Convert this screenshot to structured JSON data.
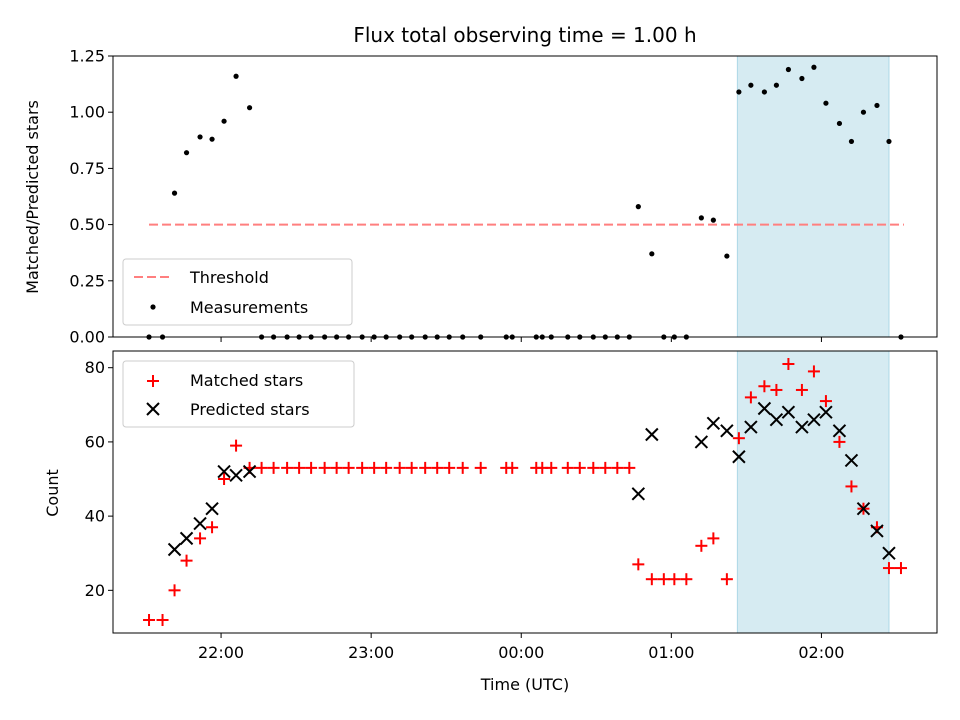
{
  "chart_data": [
    {
      "type": "scatter",
      "title": "Flux total observing time = 1.00 h",
      "xlabel": "",
      "ylabel": "Matched/Predicted stars",
      "ylim": [
        0,
        1.25
      ],
      "yticks": [
        "0.00",
        "0.25",
        "0.50",
        "0.75",
        "1.00",
        "1.25"
      ],
      "xlim_hours": [
        -2.72,
        2.77
      ],
      "xticks": [
        {
          "t": -2.0,
          "label": "22:00"
        },
        {
          "t": -1.0,
          "label": "23:00"
        },
        {
          "t": 0.0,
          "label": "00:00"
        },
        {
          "t": 1.0,
          "label": "01:00"
        },
        {
          "t": 2.0,
          "label": "02:00"
        }
      ],
      "shaded_span_hours": [
        1.44,
        2.45
      ],
      "shade_color": "#add8e6",
      "threshold": {
        "name": "Threshold",
        "value": 0.5,
        "x_range_hours": [
          -2.48,
          2.55
        ],
        "color": "#ff7f7f"
      },
      "legend": {
        "placement": "lower-left",
        "entries": [
          "Threshold",
          "Measurements"
        ]
      },
      "series": [
        {
          "name": "Measurements",
          "marker": "dot",
          "color": "#000000",
          "x_hours": [
            -2.48,
            -2.39,
            -2.31,
            -2.23,
            -2.14,
            -2.06,
            -1.98,
            -1.9,
            -1.81,
            -1.73,
            -1.65,
            -1.56,
            -1.48,
            -1.4,
            -1.31,
            -1.23,
            -1.15,
            -1.06,
            -0.98,
            -0.9,
            -0.81,
            -0.73,
            -0.64,
            -0.56,
            -0.48,
            -0.39,
            -0.27,
            -0.1,
            -0.06,
            0.1,
            0.14,
            0.2,
            0.31,
            0.39,
            0.48,
            0.56,
            0.64,
            0.72,
            0.78,
            0.87,
            0.95,
            1.02,
            1.1,
            1.2,
            1.28,
            1.37,
            1.45,
            1.53,
            1.62,
            1.7,
            1.78,
            1.87,
            1.95,
            2.03,
            2.12,
            2.2,
            2.28,
            2.37,
            2.45,
            2.53
          ],
          "y": [
            0,
            0,
            0.64,
            0.82,
            0.89,
            0.88,
            0.96,
            1.16,
            1.02,
            0,
            0,
            0,
            0,
            0,
            0,
            0,
            0,
            0,
            0,
            0,
            0,
            0,
            0,
            0,
            0,
            0,
            0,
            0,
            0,
            0,
            0,
            0,
            0,
            0,
            0,
            0,
            0,
            0,
            0.58,
            0.37,
            0,
            0,
            0,
            0.53,
            0.52,
            0.36,
            1.09,
            1.12,
            1.09,
            1.12,
            1.19,
            1.15,
            1.2,
            1.04,
            0.95,
            0.87,
            1.0,
            1.03,
            0.87,
            0
          ]
        }
      ]
    },
    {
      "type": "scatter",
      "title": "",
      "xlabel": "Time (UTC)",
      "ylabel": "Count",
      "ylim": [
        8.5,
        84.5
      ],
      "yticks": [
        "20",
        "40",
        "60",
        "80"
      ],
      "xlim_hours": [
        -2.72,
        2.77
      ],
      "xticks": [
        {
          "t": -2.0,
          "label": "22:00"
        },
        {
          "t": -1.0,
          "label": "23:00"
        },
        {
          "t": 0.0,
          "label": "00:00"
        },
        {
          "t": 1.0,
          "label": "01:00"
        },
        {
          "t": 2.0,
          "label": "02:00"
        }
      ],
      "shaded_span_hours": [
        1.44,
        2.45
      ],
      "shade_color": "#add8e6",
      "legend": {
        "placement": "upper-left",
        "entries": [
          "Matched stars",
          "Predicted stars"
        ]
      },
      "series": [
        {
          "name": "Matched stars",
          "marker": "plus",
          "color": "#ff0000",
          "x_hours": [
            -2.48,
            -2.39,
            -2.31,
            -2.23,
            -2.14,
            -2.06,
            -1.98,
            -1.9,
            -1.81,
            -1.73,
            -1.65,
            -1.56,
            -1.48,
            -1.4,
            -1.31,
            -1.23,
            -1.15,
            -1.06,
            -0.98,
            -0.9,
            -0.81,
            -0.73,
            -0.64,
            -0.56,
            -0.48,
            -0.39,
            -0.27,
            -0.1,
            -0.06,
            0.1,
            0.14,
            0.2,
            0.31,
            0.39,
            0.48,
            0.56,
            0.64,
            0.72,
            0.78,
            0.87,
            0.95,
            1.02,
            1.1,
            1.2,
            1.28,
            1.37,
            1.45,
            1.53,
            1.62,
            1.7,
            1.78,
            1.87,
            1.95,
            2.03,
            2.12,
            2.2,
            2.28,
            2.37,
            2.45,
            2.53
          ],
          "y": [
            12,
            12,
            20,
            28,
            34,
            37,
            50,
            59,
            53,
            53,
            53,
            53,
            53,
            53,
            53,
            53,
            53,
            53,
            53,
            53,
            53,
            53,
            53,
            53,
            53,
            53,
            53,
            53,
            53,
            53,
            53,
            53,
            53,
            53,
            53,
            53,
            53,
            53,
            27,
            23,
            23,
            23,
            23,
            32,
            34,
            23,
            61,
            72,
            75,
            74,
            81,
            74,
            79,
            71,
            60,
            48,
            42,
            37,
            26,
            26
          ]
        },
        {
          "name": "Predicted stars",
          "marker": "x",
          "color": "#000000",
          "x_hours": [
            -2.31,
            -2.23,
            -2.14,
            -2.06,
            -1.98,
            -1.9,
            -1.81,
            0.78,
            0.87,
            1.2,
            1.28,
            1.37,
            1.45,
            1.53,
            1.62,
            1.7,
            1.78,
            1.87,
            1.95,
            2.03,
            2.12,
            2.2,
            2.28,
            2.37,
            2.45
          ],
          "y": [
            31,
            34,
            38,
            42,
            52,
            51,
            52,
            46,
            62,
            60,
            65,
            63,
            56,
            64,
            69,
            66,
            68,
            64,
            66,
            68,
            63,
            55,
            42,
            36,
            30
          ]
        }
      ]
    }
  ]
}
